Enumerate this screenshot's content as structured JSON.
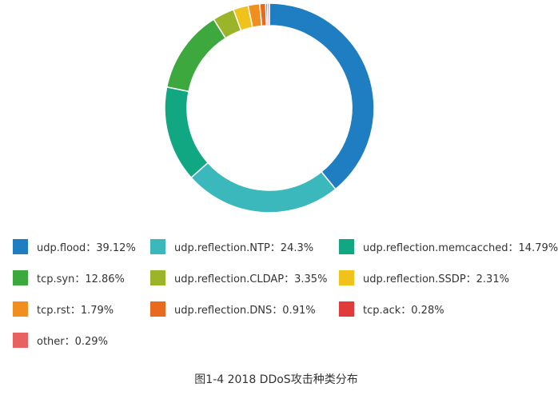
{
  "chart_data": {
    "type": "pie",
    "variant": "donut",
    "slices": [
      {
        "label": "udp.flood",
        "value": 39.12,
        "color": "#1f7ec2"
      },
      {
        "label": "udp.reflection.NTP",
        "value": 24.3,
        "color": "#3ab8bb"
      },
      {
        "label": "udp.reflection.memcacched",
        "value": 14.79,
        "color": "#12a783"
      },
      {
        "label": "tcp.syn",
        "value": 12.86,
        "color": "#3da83d"
      },
      {
        "label": "udp.reflection.CLDAP",
        "value": 3.35,
        "color": "#9ab52a"
      },
      {
        "label": "udp.reflection.SSDP",
        "value": 2.31,
        "color": "#f0c21c"
      },
      {
        "label": "tcp.rst",
        "value": 1.79,
        "color": "#f08f1e"
      },
      {
        "label": "udp.reflection.DNS",
        "value": 0.91,
        "color": "#e9691e"
      },
      {
        "label": "tcp.ack",
        "value": 0.28,
        "color": "#e03a3a"
      },
      {
        "label": "other",
        "value": 0.29,
        "color": "#e86262"
      }
    ],
    "legend_texts": [
      "udp.flood：39.12%",
      "udp.reflection.NTP：24.3%",
      "udp.reflection.memcacched：14.79%",
      "tcp.syn：12.86%",
      "udp.reflection.CLDAP：3.35%",
      "udp.reflection.SSDP：2.31%",
      "tcp.rst：1.79%",
      "udp.reflection.DNS：0.91%",
      "tcp.ack：0.28%",
      "other：0.29%"
    ],
    "legend_placement": "bottom"
  },
  "caption": "图1-4 2018 DDoS攻击种类分布"
}
